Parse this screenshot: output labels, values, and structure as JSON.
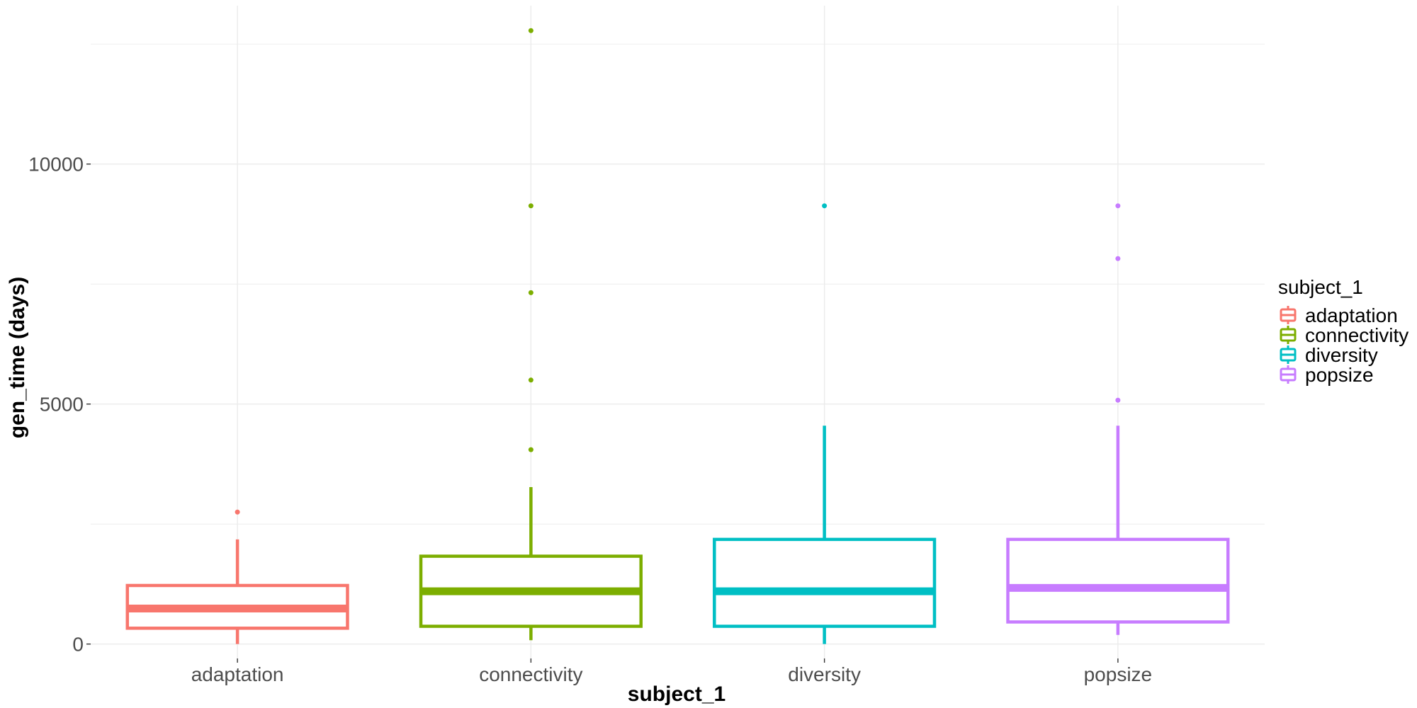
{
  "chart_data": {
    "type": "boxplot",
    "xlabel": "subject_1",
    "ylabel": "gen_time (days)",
    "categories": [
      "adaptation",
      "connectivity",
      "diversity",
      "popsize"
    ],
    "ylim": [
      -300,
      13300
    ],
    "yticks": [
      0,
      5000,
      10000
    ],
    "ytick_labels": [
      "0",
      "5000",
      "10000"
    ],
    "grid": true,
    "legend": {
      "title": "subject_1",
      "position": "right",
      "entries": [
        "adaptation",
        "connectivity",
        "diversity",
        "popsize"
      ]
    },
    "series": [
      {
        "name": "adaptation",
        "color": "#F8766D",
        "whisker_low": 0,
        "q1": 330,
        "median": 740,
        "q3": 1220,
        "whisker_high": 2180,
        "outliers": [
          2750
        ]
      },
      {
        "name": "connectivity",
        "color": "#7CAE00",
        "whisker_low": 80,
        "q1": 370,
        "median": 1100,
        "q3": 1830,
        "whisker_high": 3270,
        "outliers": [
          4050,
          5500,
          7320,
          9130,
          12780
        ]
      },
      {
        "name": "diversity",
        "color": "#00BFC4",
        "whisker_low": 0,
        "q1": 370,
        "median": 1100,
        "q3": 2180,
        "whisker_high": 4550,
        "outliers": [
          9130
        ]
      },
      {
        "name": "popsize",
        "color": "#C77CFF",
        "whisker_low": 190,
        "q1": 460,
        "median": 1170,
        "q3": 2180,
        "whisker_high": 4550,
        "outliers": [
          5080,
          8030,
          9130
        ]
      }
    ]
  }
}
